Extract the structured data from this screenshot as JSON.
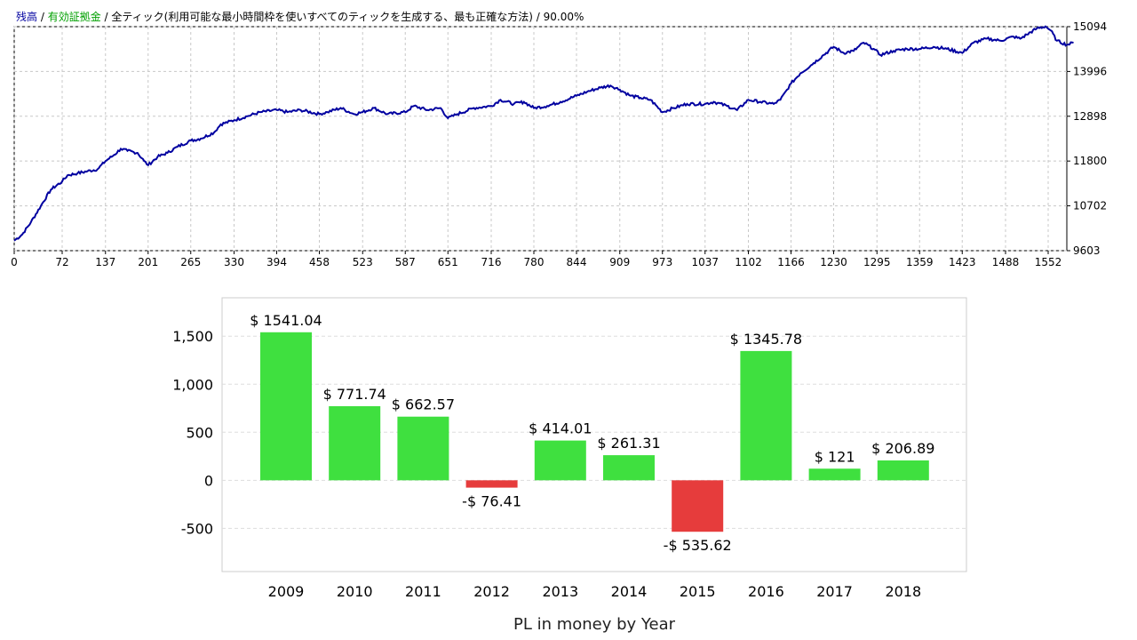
{
  "chart_data": [
    {
      "type": "line",
      "legend": [
        {
          "text": "残高",
          "color": "#0000a0"
        },
        {
          "text": "有効証拠金",
          "color": "#00a000"
        },
        {
          "text": "全ティック(利用可能な最小時間枠を使いすべてのティックを生成する、最も正確な方法)",
          "color": "#000000"
        },
        {
          "text": "90.00%",
          "color": "#000000"
        }
      ],
      "separator": "/",
      "x_ticks": [
        "0",
        "72",
        "137",
        "201",
        "265",
        "330",
        "394",
        "458",
        "523",
        "587",
        "651",
        "716",
        "780",
        "844",
        "909",
        "973",
        "1037",
        "1102",
        "1166",
        "1230",
        "1295",
        "1359",
        "1423",
        "1488",
        "1552"
      ],
      "y_ticks": [
        "15094",
        "13996",
        "12898",
        "11800",
        "10702",
        "9603"
      ],
      "xlim": [
        0,
        1580
      ],
      "ylim": [
        9603,
        15094
      ],
      "line_color": "#0000a0",
      "grid": true,
      "series": [
        {
          "values": [
            [
              0,
              9850
            ],
            [
              12,
              10000
            ],
            [
              25,
              10300
            ],
            [
              40,
              10700
            ],
            [
              55,
              11100
            ],
            [
              72,
              11300
            ],
            [
              80,
              11450
            ],
            [
              95,
              11500
            ],
            [
              110,
              11550
            ],
            [
              125,
              11600
            ],
            [
              137,
              11800
            ],
            [
              150,
              11950
            ],
            [
              160,
              12100
            ],
            [
              170,
              12050
            ],
            [
              185,
              12000
            ],
            [
              195,
              11800
            ],
            [
              201,
              11700
            ],
            [
              215,
              11900
            ],
            [
              230,
              12000
            ],
            [
              245,
              12150
            ],
            [
              265,
              12300
            ],
            [
              280,
              12350
            ],
            [
              300,
              12500
            ],
            [
              310,
              12700
            ],
            [
              330,
              12800
            ],
            [
              350,
              12900
            ],
            [
              370,
              13000
            ],
            [
              394,
              13050
            ],
            [
              410,
              13000
            ],
            [
              430,
              13050
            ],
            [
              458,
              12950
            ],
            [
              470,
              13000
            ],
            [
              490,
              13100
            ],
            [
              510,
              12950
            ],
            [
              523,
              13000
            ],
            [
              540,
              13100
            ],
            [
              560,
              12950
            ],
            [
              587,
              13000
            ],
            [
              600,
              13150
            ],
            [
              620,
              13050
            ],
            [
              640,
              13100
            ],
            [
              651,
              12850
            ],
            [
              665,
              12950
            ],
            [
              690,
              13100
            ],
            [
              716,
              13150
            ],
            [
              730,
              13300
            ],
            [
              750,
              13200
            ],
            [
              765,
              13250
            ],
            [
              780,
              13100
            ],
            [
              800,
              13150
            ],
            [
              820,
              13250
            ],
            [
              844,
              13400
            ],
            [
              860,
              13500
            ],
            [
              880,
              13600
            ],
            [
              895,
              13650
            ],
            [
              909,
              13550
            ],
            [
              925,
              13400
            ],
            [
              940,
              13350
            ],
            [
              955,
              13300
            ],
            [
              973,
              13000
            ],
            [
              990,
              13100
            ],
            [
              1010,
              13200
            ],
            [
              1037,
              13200
            ],
            [
              1050,
              13250
            ],
            [
              1070,
              13150
            ],
            [
              1085,
              13050
            ],
            [
              1102,
              13300
            ],
            [
              1120,
              13250
            ],
            [
              1140,
              13200
            ],
            [
              1150,
              13300
            ],
            [
              1160,
              13550
            ],
            [
              1166,
              13700
            ],
            [
              1180,
              13950
            ],
            [
              1200,
              14200
            ],
            [
              1215,
              14400
            ],
            [
              1230,
              14600
            ],
            [
              1245,
              14450
            ],
            [
              1260,
              14500
            ],
            [
              1275,
              14700
            ],
            [
              1290,
              14550
            ],
            [
              1300,
              14400
            ],
            [
              1320,
              14500
            ],
            [
              1340,
              14550
            ],
            [
              1359,
              14550
            ],
            [
              1380,
              14600
            ],
            [
              1400,
              14550
            ],
            [
              1423,
              14450
            ],
            [
              1440,
              14700
            ],
            [
              1460,
              14800
            ],
            [
              1480,
              14750
            ],
            [
              1500,
              14850
            ],
            [
              1510,
              14800
            ],
            [
              1520,
              14900
            ],
            [
              1535,
              15050
            ],
            [
              1548,
              15100
            ],
            [
              1556,
              15000
            ],
            [
              1565,
              14750
            ],
            [
              1580,
              14650
            ],
            [
              1590,
              14700
            ]
          ]
        }
      ]
    },
    {
      "type": "bar",
      "xlabel": "PL in money by Year",
      "categories": [
        "2009",
        "2010",
        "2011",
        "2012",
        "2013",
        "2014",
        "2015",
        "2016",
        "2017",
        "2018"
      ],
      "values": [
        1541.04,
        771.74,
        662.57,
        -76.41,
        414.01,
        261.31,
        -535.62,
        1345.78,
        121,
        206.89
      ],
      "labels": [
        "$ 1541.04",
        "$ 771.74",
        "$ 662.57",
        "-$ 76.41",
        "$ 414.01",
        "$ 261.31",
        "-$ 535.62",
        "$ 1345.78",
        "$ 121",
        "$ 206.89"
      ],
      "y_ticks": [
        "1,500",
        "1,000",
        "500",
        "0",
        "-500"
      ],
      "ylim": [
        -950,
        1900
      ],
      "positive_color": "#3fe03f",
      "negative_color": "#e63c3c",
      "grid": true
    }
  ]
}
